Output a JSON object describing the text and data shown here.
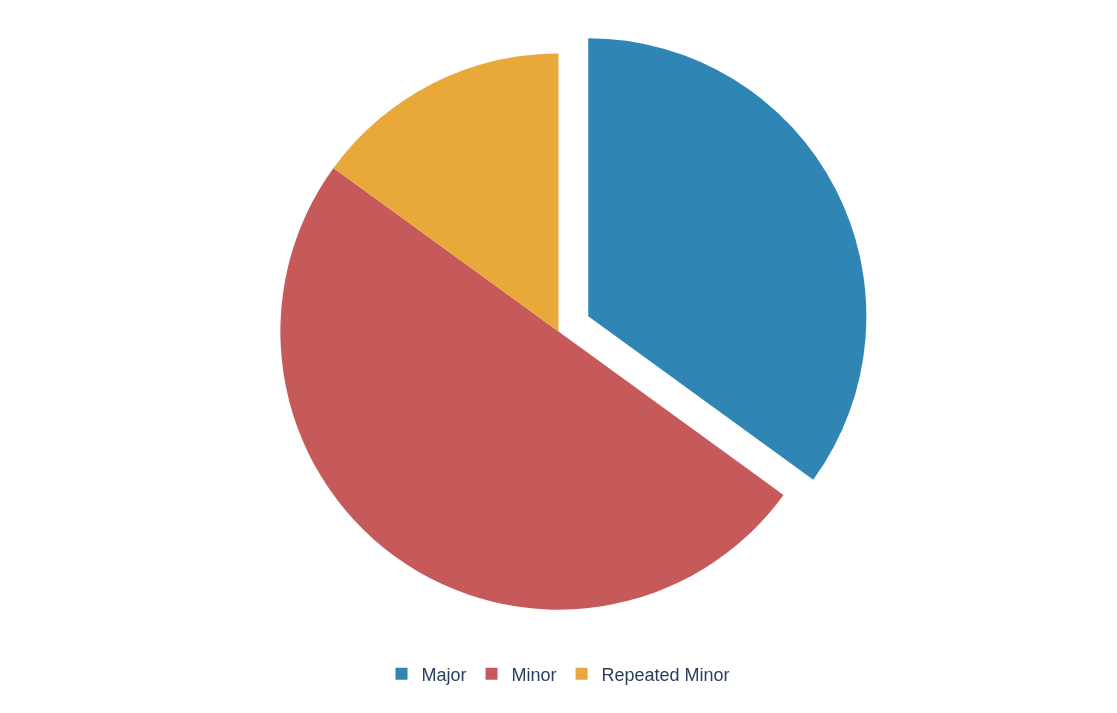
{
  "chart_data": {
    "type": "pie",
    "categories": [
      "Major",
      "Minor",
      "Repeated Minor"
    ],
    "values": [
      35,
      50,
      15
    ],
    "colors": [
      "#2f86b4",
      "#c65a5a",
      "#e9a83a"
    ],
    "legend": "bottom"
  }
}
